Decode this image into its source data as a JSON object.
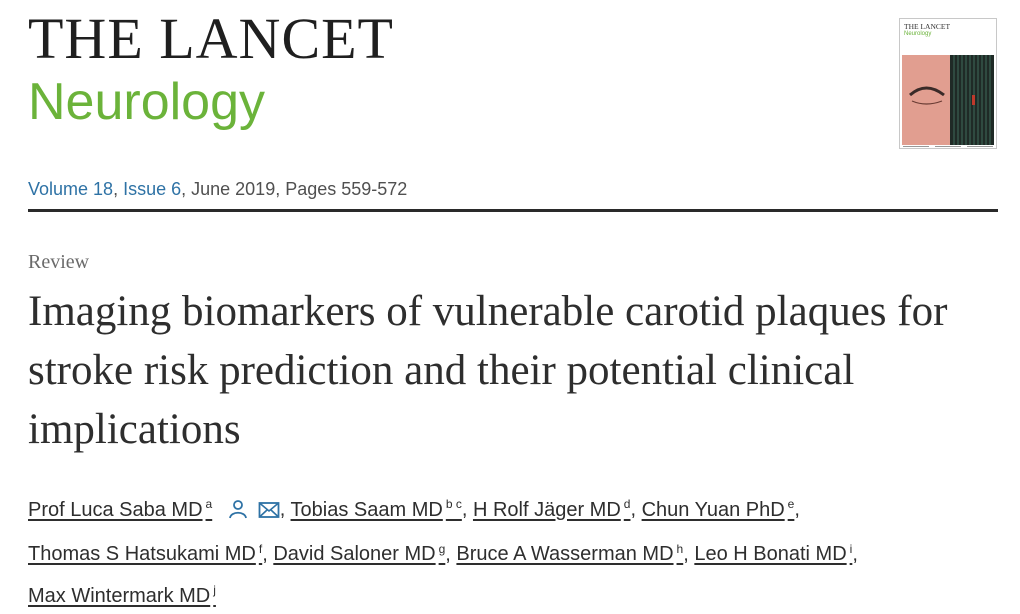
{
  "journal": {
    "name": "THE LANCET",
    "section": "Neurology"
  },
  "cover": {
    "title": "THE LANCET",
    "subtitle": "Neurology"
  },
  "citation": {
    "volume": "Volume 18",
    "issue": "Issue 6",
    "rest": ", June 2019, Pages 559-572"
  },
  "article": {
    "type": "Review",
    "title": "Imaging biomarkers of vulnerable carotid plaques for stroke risk prediction and their potential clinical implications"
  },
  "authors": [
    {
      "name": "Prof Luca Saba MD",
      "aff": "a"
    },
    {
      "name": "Tobias Saam MD",
      "aff": "b c"
    },
    {
      "name": "H Rolf Jäger MD",
      "aff": "d"
    },
    {
      "name": "Chun Yuan PhD",
      "aff": "e"
    },
    {
      "name": "Thomas S Hatsukami MD",
      "aff": "f"
    },
    {
      "name": "David Saloner MD",
      "aff": "g"
    },
    {
      "name": "Bruce A Wasserman MD",
      "aff": "h"
    },
    {
      "name": "Leo H Bonati MD",
      "aff": "i"
    },
    {
      "name": "Max Wintermark MD",
      "aff": "j"
    }
  ],
  "colors": {
    "accent_green": "#6bb33a",
    "link_blue": "#2e72a5",
    "text": "#2e2e2e"
  },
  "icons": {
    "author_profile": "person-icon",
    "email": "envelope-icon"
  }
}
